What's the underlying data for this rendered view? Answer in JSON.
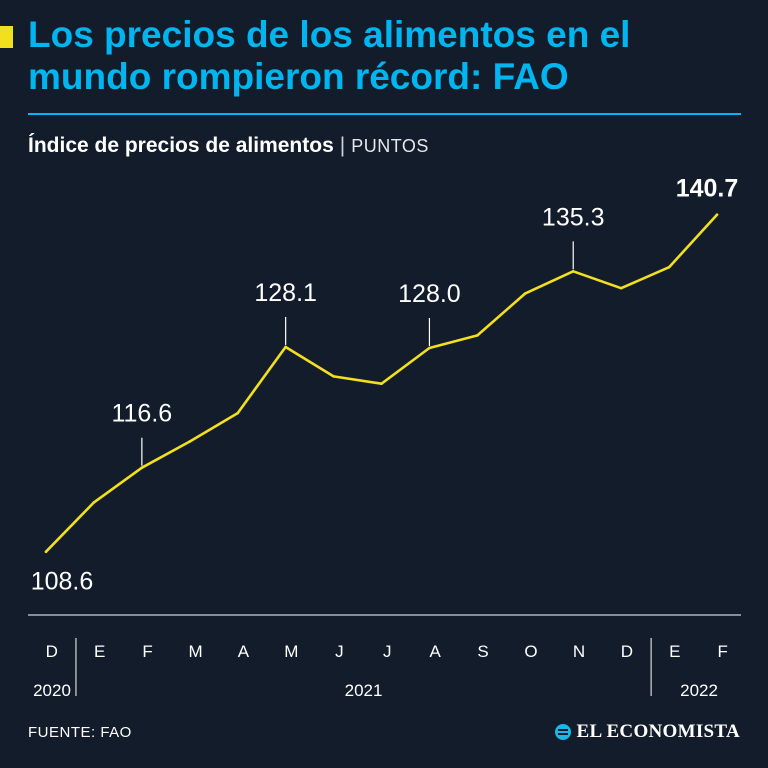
{
  "header": {
    "title": "Los precios de los alimentos en el mundo rompieron récord: FAO",
    "subtitle_main": "Índice de precios de alimentos",
    "subtitle_separator": "|",
    "subtitle_unit": "PUNTOS"
  },
  "colors": {
    "accent": "#00b5f0",
    "line": "#f2e01f",
    "square": "#f2e01f",
    "background": "#131c2a",
    "text": "#ffffff"
  },
  "chart_data": {
    "type": "line",
    "title": "Índice de precios de alimentos",
    "ylabel": "PUNTOS",
    "xlabel": "",
    "categories": [
      "D",
      "E",
      "F",
      "M",
      "A",
      "M",
      "J",
      "J",
      "A",
      "S",
      "O",
      "N",
      "D",
      "E",
      "F"
    ],
    "year_groups": [
      {
        "label": "2020",
        "start": 0,
        "end": 0
      },
      {
        "label": "2021",
        "start": 1,
        "end": 12
      },
      {
        "label": "2022",
        "start": 13,
        "end": 14
      }
    ],
    "series": [
      {
        "name": "Índice FAO",
        "values": [
          108.6,
          113.3,
          116.6,
          119.1,
          121.8,
          128.1,
          125.3,
          124.6,
          128.0,
          129.2,
          133.2,
          135.3,
          133.7,
          135.7,
          140.7
        ]
      }
    ],
    "ylim": [
      104,
      144
    ],
    "annotations": [
      {
        "index": 0,
        "label": "108.6",
        "position": "below",
        "bold": false
      },
      {
        "index": 2,
        "label": "116.6",
        "position": "above",
        "bold": false
      },
      {
        "index": 5,
        "label": "128.1",
        "position": "above",
        "bold": false
      },
      {
        "index": 8,
        "label": "128.0",
        "position": "above",
        "bold": false
      },
      {
        "index": 11,
        "label": "135.3",
        "position": "above",
        "bold": false
      },
      {
        "index": 14,
        "label": "140.7",
        "position": "above",
        "bold": true
      }
    ]
  },
  "footer": {
    "source": "FUENTE: FAO",
    "brand": "EL ECONOMISTA"
  }
}
